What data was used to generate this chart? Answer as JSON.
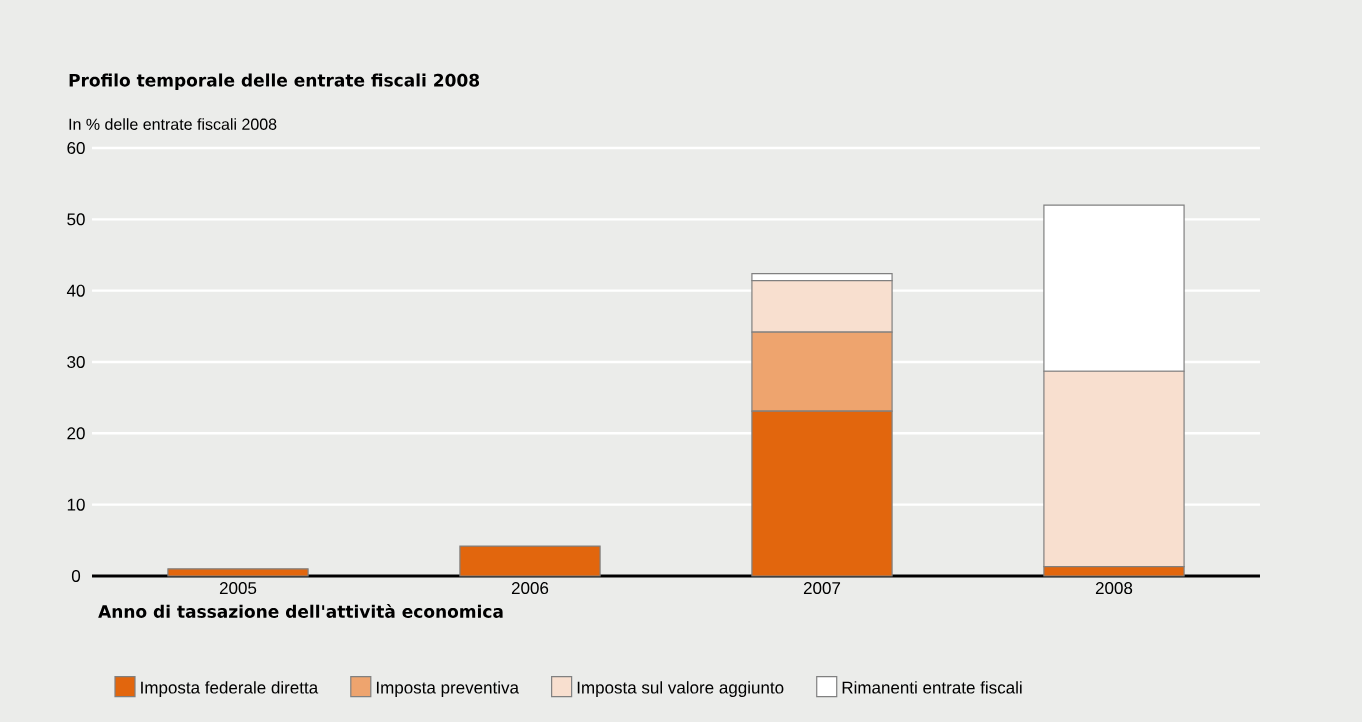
{
  "chart_data": {
    "type": "bar",
    "stacked": true,
    "title": "Profilo temporale delle entrate fiscali 2008",
    "ylabel": "In % delle entrate fiscali 2008",
    "xlabel": "Anno di tassazione dell'attività economica",
    "categories": [
      "2005",
      "2006",
      "2007",
      "2008"
    ],
    "series": [
      {
        "name": "Imposta federale diretta",
        "color": "#e2660d",
        "values": [
          1.0,
          4.2,
          23.1,
          1.3
        ]
      },
      {
        "name": "Imposta preventiva",
        "color": "#eea46e",
        "values": [
          0,
          0,
          11.1,
          0
        ]
      },
      {
        "name": "Imposta sul valore aggiunto",
        "color": "#f8dfcf",
        "values": [
          0,
          0,
          7.2,
          27.4
        ]
      },
      {
        "name": "Rimanenti entrate fiscali",
        "color": "#ffffff",
        "values": [
          0,
          0,
          1.0,
          23.3
        ]
      }
    ],
    "ylim": [
      0,
      60
    ],
    "yticks": [
      0,
      10,
      20,
      30,
      40,
      50,
      60
    ],
    "grid": "y",
    "legend": "bottom"
  }
}
